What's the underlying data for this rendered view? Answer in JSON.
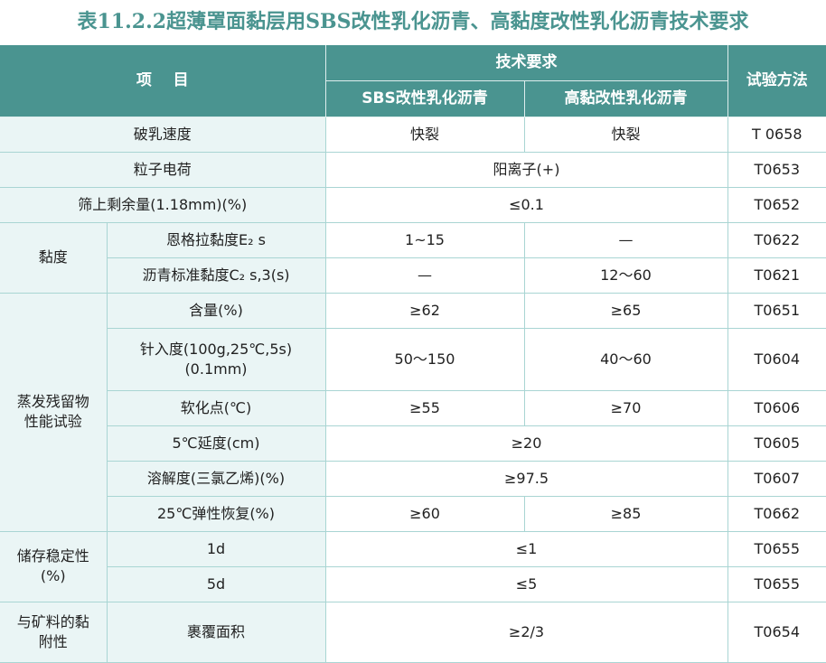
{
  "title": "表11.2.2超薄罩面黏层用SBS改性乳化沥青、高黏度改性乳化沥青技术要求",
  "colors": {
    "header_bg": "#4a9490",
    "label_bg": "#eaf5f5",
    "border": "#a9d5d3",
    "title": "#4a9490"
  },
  "header": {
    "item": "项    目",
    "tech_req": "技术要求",
    "sbs": "SBS改性乳化沥青",
    "high_vis": "高黏改性乳化沥青",
    "method": "试验方法"
  },
  "rows": [
    [
      {
        "t": "破乳速度",
        "cs": 2,
        "k": "label"
      },
      {
        "t": "快裂",
        "k": "val"
      },
      {
        "t": "快裂",
        "k": "val"
      },
      {
        "t": "T 0658",
        "k": "method"
      }
    ],
    [
      {
        "t": "粒子电荷",
        "cs": 2,
        "k": "label"
      },
      {
        "t": "阳离子(+)",
        "cs": 2,
        "k": "val"
      },
      {
        "t": "T0653",
        "k": "method"
      }
    ],
    [
      {
        "t": "筛上剩余量(1.18mm)(%)",
        "cs": 2,
        "k": "label"
      },
      {
        "t": "≤0.1",
        "cs": 2,
        "k": "val"
      },
      {
        "t": "T0652",
        "k": "method"
      }
    ],
    [
      {
        "t": "黏度",
        "rs": 2,
        "k": "label"
      },
      {
        "t": "恩格拉黏度E₂ s",
        "k": "label"
      },
      {
        "t": "1~15",
        "k": "val"
      },
      {
        "t": "—",
        "k": "val"
      },
      {
        "t": "T0622",
        "k": "method"
      }
    ],
    [
      {
        "t": "沥青标准黏度C₂ s,3(s)",
        "k": "label"
      },
      {
        "t": "—",
        "k": "val"
      },
      {
        "t": "12～60",
        "k": "val"
      },
      {
        "t": "T0621",
        "k": "method"
      }
    ],
    [
      {
        "t": "蒸发残留物性能试验",
        "rs": 6,
        "k": "label"
      },
      {
        "t": "含量(%)",
        "k": "label"
      },
      {
        "t": "≥62",
        "k": "val"
      },
      {
        "t": "≥65",
        "k": "val"
      },
      {
        "t": "T0651",
        "k": "method"
      }
    ],
    [
      {
        "t": "针入度(100g,25℃,5s)(0.1mm)",
        "k": "label"
      },
      {
        "t": "50～150",
        "k": "val"
      },
      {
        "t": "40～60",
        "k": "val"
      },
      {
        "t": "T0604",
        "k": "method"
      }
    ],
    [
      {
        "t": "软化点(℃)",
        "k": "label"
      },
      {
        "t": "≥55",
        "k": "val"
      },
      {
        "t": "≥70",
        "k": "val"
      },
      {
        "t": "T0606",
        "k": "method"
      }
    ],
    [
      {
        "t": "5℃延度(cm)",
        "k": "label"
      },
      {
        "t": "≥20",
        "cs": 2,
        "k": "val"
      },
      {
        "t": "T0605",
        "k": "method"
      }
    ],
    [
      {
        "t": "溶解度(三氯乙烯)(%)",
        "k": "label"
      },
      {
        "t": "≥97.5",
        "cs": 2,
        "k": "val"
      },
      {
        "t": "T0607",
        "k": "method"
      }
    ],
    [
      {
        "t": "25℃弹性恢复(%)",
        "k": "label"
      },
      {
        "t": "≥60",
        "k": "val"
      },
      {
        "t": "≥85",
        "k": "val"
      },
      {
        "t": "T0662",
        "k": "method"
      }
    ],
    [
      {
        "t": "储存稳定性(%)",
        "rs": 2,
        "k": "label"
      },
      {
        "t": "1d",
        "k": "label"
      },
      {
        "t": "≤1",
        "cs": 2,
        "k": "val"
      },
      {
        "t": "T0655",
        "k": "method"
      }
    ],
    [
      {
        "t": "5d",
        "k": "label"
      },
      {
        "t": "≤5",
        "cs": 2,
        "k": "val"
      },
      {
        "t": "T0655",
        "k": "method"
      }
    ],
    [
      {
        "t": "与矿料的黏附性",
        "k": "label"
      },
      {
        "t": "裹覆面积",
        "k": "label"
      },
      {
        "t": "≥2/3",
        "cs": 2,
        "k": "val"
      },
      {
        "t": "T0654",
        "k": "method"
      }
    ]
  ]
}
